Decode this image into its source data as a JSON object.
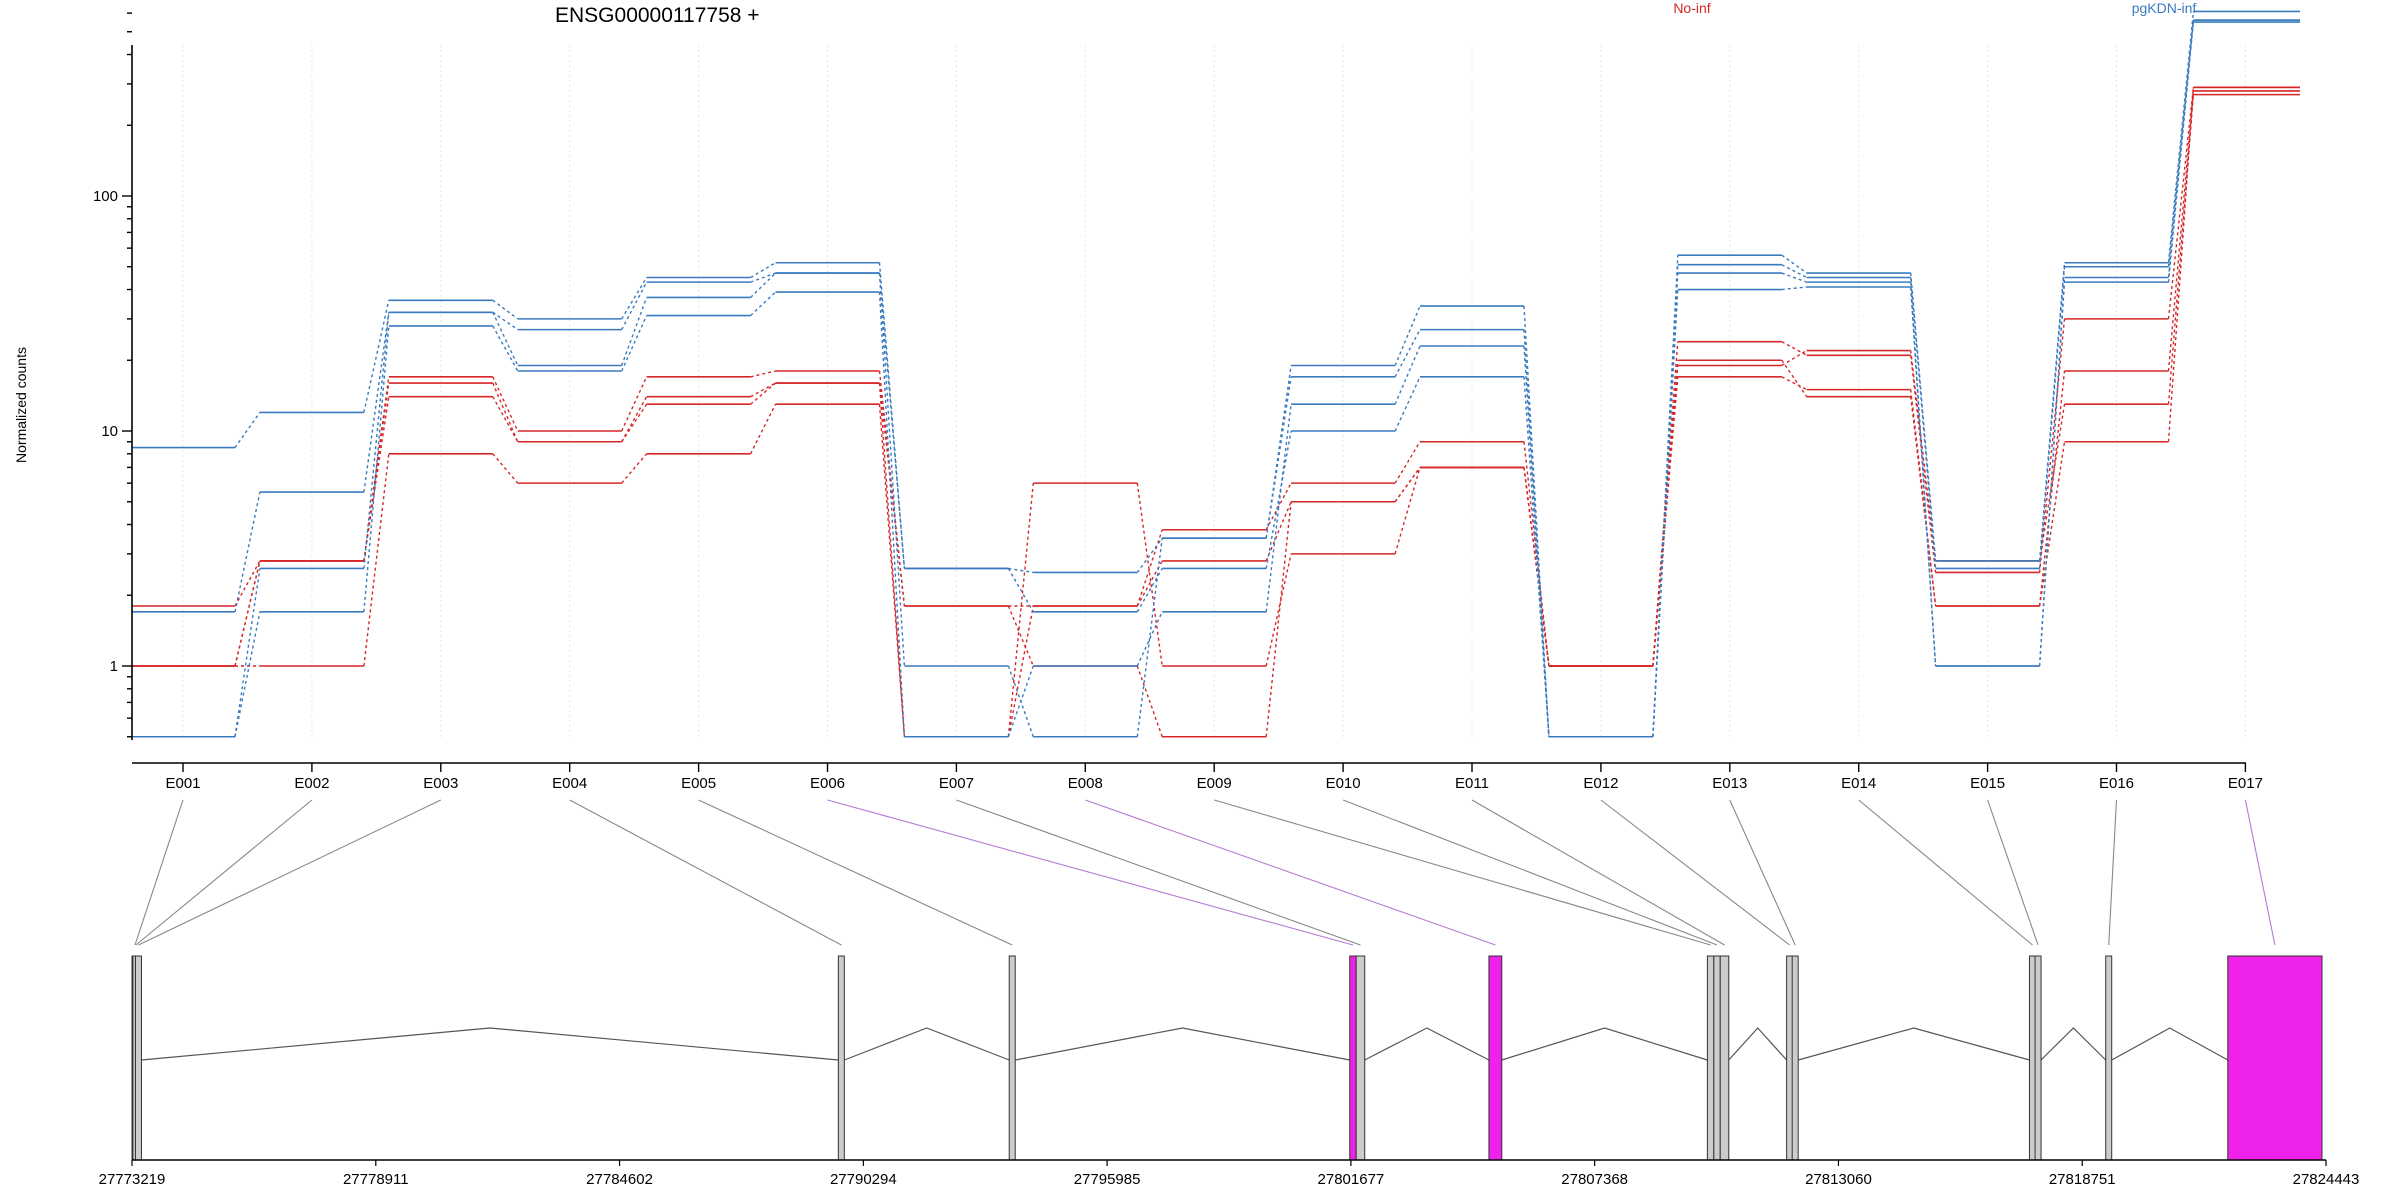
{
  "chart_data": {
    "type": "line",
    "title": "ENSG00000117758 +",
    "ylabel": "Normalized counts",
    "y_scale": "log",
    "ylim": [
      0.5,
      800
    ],
    "yticks": [
      "1",
      "10",
      "100"
    ],
    "grid": "vertical",
    "categories": [
      "E001",
      "E002",
      "E003",
      "E004",
      "E005",
      "E006",
      "E007",
      "E008",
      "E009",
      "E010",
      "E011",
      "E012",
      "E013",
      "E014",
      "E015",
      "E016",
      "E017"
    ],
    "legend": [
      {
        "name": "No-inf",
        "color": "#d62728"
      },
      {
        "name": "pgKDN-inf",
        "color": "#3a7bbf"
      }
    ],
    "series": [
      {
        "group": "No-inf",
        "values": [
          1.0,
          2.8,
          16,
          9,
          13,
          16,
          1.8,
          1.0,
          0.5,
          5,
          7,
          1.0,
          20,
          14,
          1.8,
          18,
          280
        ]
      },
      {
        "group": "No-inf",
        "values": [
          1.8,
          2.8,
          17,
          10,
          17,
          18,
          1.8,
          1.8,
          3.8,
          6,
          9,
          1.0,
          24,
          21,
          2.5,
          30,
          290
        ]
      },
      {
        "group": "No-inf",
        "values": [
          1.0,
          1.0,
          8,
          6,
          8,
          13,
          0.5,
          6,
          1.0,
          3,
          7,
          1.0,
          17,
          15,
          1.8,
          9,
          290
        ]
      },
      {
        "group": "No-inf",
        "values": [
          1.0,
          2.8,
          14,
          9,
          14,
          16,
          0.5,
          1.8,
          2.8,
          5,
          7,
          1.0,
          19,
          22,
          2.8,
          13,
          270
        ]
      },
      {
        "group": "pgKDN-inf",
        "values": [
          8.5,
          12,
          36,
          30,
          45,
          52,
          2.6,
          2.5,
          3.5,
          19,
          34,
          0.5,
          56,
          47,
          2.8,
          52,
          610
        ]
      },
      {
        "group": "pgKDN-inf",
        "values": [
          1.7,
          5.5,
          32,
          19,
          37,
          47,
          1.0,
          0.5,
          3.5,
          17,
          27,
          0.5,
          47,
          43,
          1.0,
          45,
          560
        ]
      },
      {
        "group": "pgKDN-inf",
        "values": [
          0.5,
          1.7,
          28,
          18,
          31,
          39,
          0.5,
          1.0,
          1.7,
          13,
          23,
          0.5,
          40,
          41,
          1.0,
          43,
          550
        ]
      },
      {
        "group": "pgKDN-inf",
        "values": [
          0.5,
          2.6,
          32,
          27,
          43,
          47,
          2.6,
          1.7,
          2.6,
          10,
          17,
          0.5,
          51,
          45,
          2.6,
          50,
          560
        ]
      }
    ],
    "gene_track": {
      "coordinate_ticks": [
        "27773219",
        "27778911",
        "27784602",
        "27790294",
        "27795985",
        "27801677",
        "27807368",
        "27813060",
        "27818751",
        "27824443"
      ],
      "genome_range": [
        27773219,
        27824443
      ],
      "exons": [
        {
          "label": "E001",
          "start": 27773219,
          "end": 27773300,
          "highlight": false
        },
        {
          "label": "E002",
          "start": 27773240,
          "end": 27773320,
          "highlight": false
        },
        {
          "label": "E003",
          "start": 27773300,
          "end": 27773420,
          "highlight": false
        },
        {
          "label": "E004",
          "start": 27789710,
          "end": 27789800,
          "highlight": false
        },
        {
          "label": "E005",
          "start": 27793700,
          "end": 27793790,
          "highlight": false
        },
        {
          "label": "E006",
          "start": 27801650,
          "end": 27801800,
          "highlight": true
        },
        {
          "label": "E007",
          "start": 27801800,
          "end": 27802000,
          "highlight": false
        },
        {
          "label": "E008",
          "start": 27804900,
          "end": 27805200,
          "highlight": true
        },
        {
          "label": "E009",
          "start": 27810000,
          "end": 27810150,
          "highlight": false
        },
        {
          "label": "E010",
          "start": 27810150,
          "end": 27810300,
          "highlight": false
        },
        {
          "label": "E011",
          "start": 27810300,
          "end": 27810500,
          "highlight": false
        },
        {
          "label": "E012",
          "start": 27811850,
          "end": 27811950,
          "highlight": false
        },
        {
          "label": "E013",
          "start": 27811980,
          "end": 27812100,
          "highlight": false
        },
        {
          "label": "E014",
          "start": 27817520,
          "end": 27817650,
          "highlight": false
        },
        {
          "label": "E015",
          "start": 27817650,
          "end": 27817750,
          "highlight": false
        },
        {
          "label": "E016",
          "start": 27819300,
          "end": 27819400,
          "highlight": false
        },
        {
          "label": "E017",
          "start": 27822150,
          "end": 27824350,
          "highlight": true
        }
      ]
    }
  },
  "colors": {
    "no_inf": "#d62728",
    "pgkdn_inf": "#3a7bbf",
    "highlight_exon": "#ee22e8",
    "exon": "#cccccc",
    "axis": "#000000",
    "connector": "#888888",
    "connector_highlight": "#b57ad6"
  }
}
